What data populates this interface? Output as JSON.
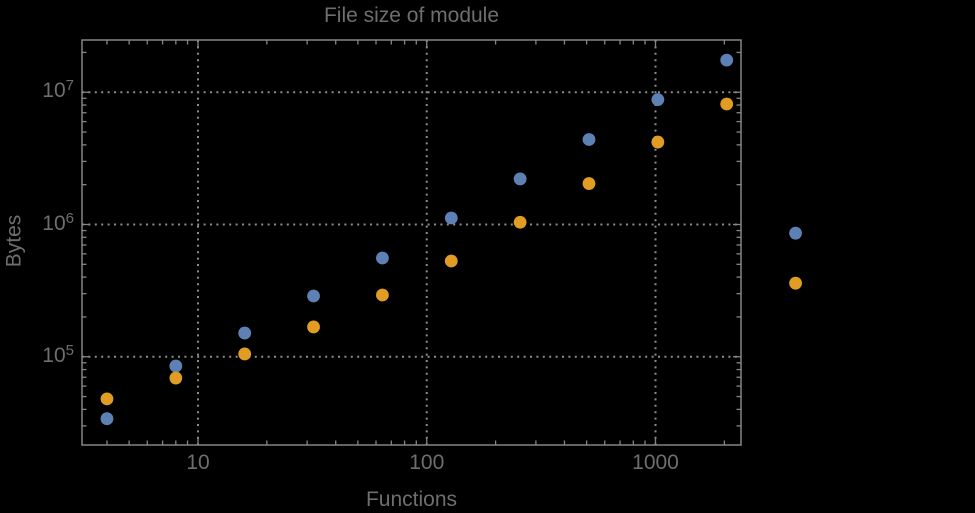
{
  "title": "File size of module",
  "colors": {
    "background": "#000000",
    "frame": "#868686",
    "grid": "#8c8c8c",
    "text": "#6e6e6e",
    "series_blue": "#5E81B5",
    "series_orange": "#E19C24"
  },
  "chart_data": {
    "type": "scatter",
    "title": "File size of module",
    "xlabel": "Functions",
    "ylabel": "Bytes",
    "x_scale": "log",
    "y_scale": "log",
    "grid": "dotted at major ticks",
    "legend": "none",
    "xlim": [
      3.05,
      2350
    ],
    "ylim": [
      21500,
      24800000
    ],
    "x_ticks": [
      10,
      100,
      1000
    ],
    "x_tick_labels": [
      "10",
      "100",
      "1000"
    ],
    "y_ticks": [
      100000,
      1000000,
      10000000
    ],
    "y_tick_labels": [
      "10^5",
      "10^6",
      "10^7"
    ],
    "marker": "filled circle",
    "x": [
      4,
      8,
      16,
      32,
      64,
      128,
      256,
      512,
      1024,
      2048,
      4096
    ],
    "series": [
      {
        "name": "blue",
        "color": "#5E81B5",
        "values": [
          34000,
          85000,
          151000,
          288000,
          558000,
          1120000,
          2210000,
          4390000,
          8800000,
          17500000,
          860000
        ]
      },
      {
        "name": "orange",
        "color": "#E19C24",
        "values": [
          48000,
          69000,
          105000,
          168000,
          293000,
          530000,
          1040000,
          2040000,
          4200000,
          8150000,
          360000
        ]
      }
    ]
  }
}
